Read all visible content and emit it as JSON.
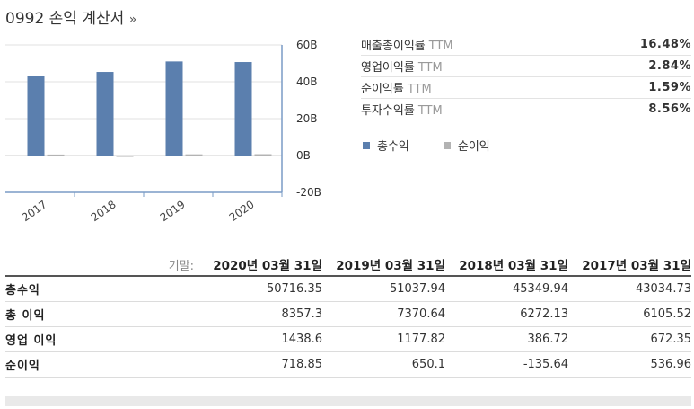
{
  "header": {
    "title": "0992 손익 계산서",
    "arrow": "»"
  },
  "metrics": [
    {
      "label": "매출총이익률",
      "suffix": "TTM",
      "value": "16.48%"
    },
    {
      "label": "영업이익률",
      "suffix": "TTM",
      "value": "2.84%"
    },
    {
      "label": "순이익률",
      "suffix": "TTM",
      "value": "1.59%"
    },
    {
      "label": "투자수익률",
      "suffix": "TTM",
      "value": "8.56%"
    }
  ],
  "legend": [
    {
      "label": "총수익",
      "color": "#5b7fae"
    },
    {
      "label": "순이익",
      "color": "#b3b3b3"
    }
  ],
  "chart_data": {
    "type": "bar",
    "categories": [
      "2017",
      "2018",
      "2019",
      "2020"
    ],
    "series": [
      {
        "name": "총수익",
        "values": [
          43.03,
          45.35,
          51.04,
          50.72
        ],
        "color": "#5b7fae"
      },
      {
        "name": "순이익",
        "values": [
          0.54,
          -0.14,
          0.65,
          0.72
        ],
        "color": "#b3b3b3"
      }
    ],
    "y_ticks": [
      "60B",
      "40B",
      "20B",
      "0B",
      "-20B"
    ],
    "y_tick_values": [
      60,
      40,
      20,
      0,
      -20
    ],
    "ylim": [
      -20,
      60
    ],
    "grid": true
  },
  "table": {
    "prefix": "기말:",
    "periods": [
      "2020년 03월 31일",
      "2019년 03월 31일",
      "2018년 03월 31일",
      "2017년 03월 31일"
    ],
    "rows": [
      {
        "label": "총수익",
        "values": [
          "50716.35",
          "51037.94",
          "45349.94",
          "43034.73"
        ]
      },
      {
        "label": "총 이익",
        "values": [
          "8357.3",
          "7370.64",
          "6272.13",
          "6105.52"
        ]
      },
      {
        "label": "영업 이익",
        "values": [
          "1438.6",
          "1177.82",
          "386.72",
          "672.35"
        ]
      },
      {
        "label": "순이익",
        "values": [
          "718.85",
          "650.1",
          "-135.64",
          "536.96"
        ]
      }
    ]
  }
}
